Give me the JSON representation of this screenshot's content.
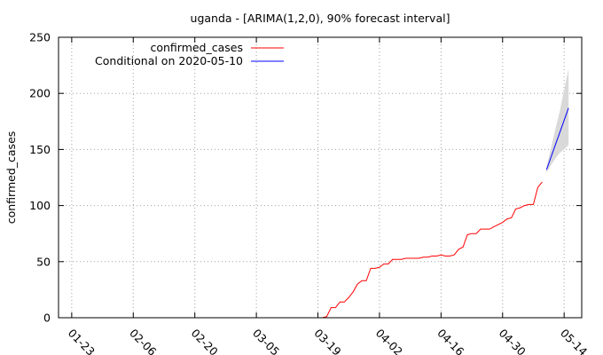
{
  "chart_data": {
    "type": "line",
    "title": "uganda -  [ARIMA(1,2,0), 90% forecast interval]",
    "xlabel": "",
    "ylabel": "confirmed_cases",
    "x_ticks": [
      "01-23",
      "02-06",
      "02-20",
      "03-05",
      "03-19",
      "04-02",
      "04-16",
      "04-30",
      "05-14"
    ],
    "xlim": [
      "2020-01-20",
      "2020-05-18"
    ],
    "ylim": [
      0,
      250
    ],
    "y_ticks": [
      0,
      50,
      100,
      150,
      200,
      250
    ],
    "grid": true,
    "legend_position": "top-left",
    "series": [
      {
        "name": "confirmed_cases",
        "color": "#ff0000",
        "points": [
          [
            "2020-03-20",
            0
          ],
          [
            "2020-03-21",
            1
          ],
          [
            "2020-03-22",
            9
          ],
          [
            "2020-03-23",
            9
          ],
          [
            "2020-03-24",
            14
          ],
          [
            "2020-03-25",
            14
          ],
          [
            "2020-03-26",
            18
          ],
          [
            "2020-03-27",
            23
          ],
          [
            "2020-03-28",
            30
          ],
          [
            "2020-03-29",
            33
          ],
          [
            "2020-03-30",
            33
          ],
          [
            "2020-03-31",
            44
          ],
          [
            "2020-04-01",
            44
          ],
          [
            "2020-04-02",
            45
          ],
          [
            "2020-04-03",
            48
          ],
          [
            "2020-04-04",
            48
          ],
          [
            "2020-04-05",
            52
          ],
          [
            "2020-04-06",
            52
          ],
          [
            "2020-04-07",
            52
          ],
          [
            "2020-04-08",
            53
          ],
          [
            "2020-04-09",
            53
          ],
          [
            "2020-04-10",
            53
          ],
          [
            "2020-04-11",
            53
          ],
          [
            "2020-04-12",
            54
          ],
          [
            "2020-04-13",
            54
          ],
          [
            "2020-04-14",
            55
          ],
          [
            "2020-04-15",
            55
          ],
          [
            "2020-04-16",
            56
          ],
          [
            "2020-04-17",
            55
          ],
          [
            "2020-04-18",
            55
          ],
          [
            "2020-04-19",
            56
          ],
          [
            "2020-04-20",
            61
          ],
          [
            "2020-04-21",
            63
          ],
          [
            "2020-04-22",
            74
          ],
          [
            "2020-04-23",
            75
          ],
          [
            "2020-04-24",
            75
          ],
          [
            "2020-04-25",
            79
          ],
          [
            "2020-04-26",
            79
          ],
          [
            "2020-04-27",
            79
          ],
          [
            "2020-04-28",
            81
          ],
          [
            "2020-04-29",
            83
          ],
          [
            "2020-04-30",
            85
          ],
          [
            "2020-05-01",
            88
          ],
          [
            "2020-05-02",
            89
          ],
          [
            "2020-05-03",
            97
          ],
          [
            "2020-05-04",
            98
          ],
          [
            "2020-05-05",
            100
          ],
          [
            "2020-05-06",
            101
          ],
          [
            "2020-05-07",
            101
          ],
          [
            "2020-05-08",
            116
          ],
          [
            "2020-05-09",
            121
          ]
        ]
      },
      {
        "name": "Conditional on 2020-05-10",
        "color": "#0000ff",
        "points": [
          [
            "2020-05-10",
            132
          ],
          [
            "2020-05-11",
            143
          ],
          [
            "2020-05-12",
            154
          ],
          [
            "2020-05-13",
            165
          ],
          [
            "2020-05-14",
            176
          ],
          [
            "2020-05-15",
            187
          ]
        ],
        "interval": {
          "color": "#d9d9d9",
          "lower": [
            129,
            136,
            142,
            147,
            150,
            154
          ],
          "upper": [
            135,
            151,
            168,
            184,
            203,
            222
          ]
        }
      }
    ]
  }
}
